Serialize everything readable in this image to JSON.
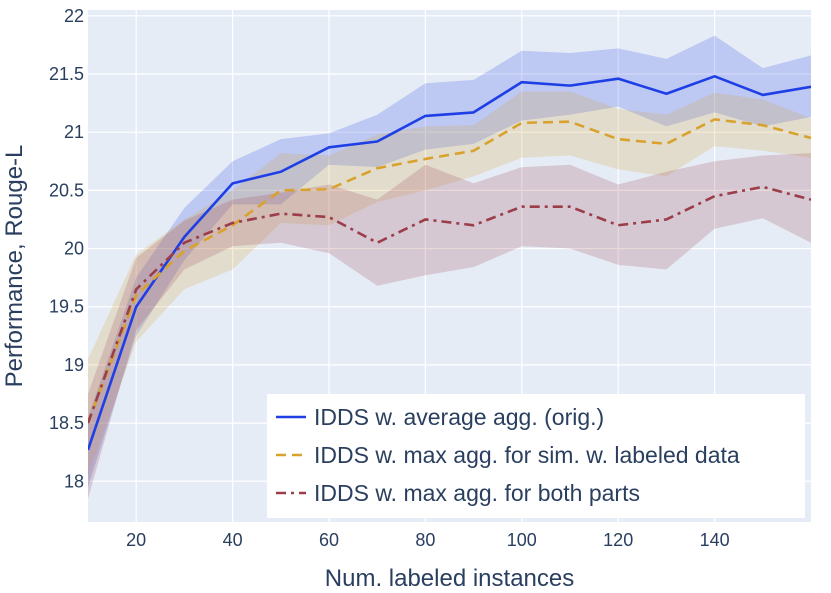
{
  "chart_data": {
    "type": "line",
    "title": "",
    "xlabel": "Num. labeled instances",
    "ylabel": "Performance, Rouge-L",
    "xlim": [
      10,
      160
    ],
    "ylim": [
      17.65,
      22.05
    ],
    "xticks": [
      20,
      40,
      60,
      80,
      100,
      120,
      140
    ],
    "xtick_labels": [
      "20",
      "40",
      "60",
      "80",
      "100",
      "120",
      "140"
    ],
    "yticks": [
      18,
      18.5,
      19,
      19.5,
      20,
      20.5,
      21,
      21.5,
      22
    ],
    "ytick_labels": [
      "18",
      "18.5",
      "19",
      "19.5",
      "20",
      "20.5",
      "21",
      "21.5",
      "22"
    ],
    "grid": true,
    "plot_background": "#e5ecf6",
    "legend_position": "bottom-right",
    "x": [
      10,
      20,
      30,
      40,
      50,
      60,
      70,
      80,
      90,
      100,
      110,
      120,
      130,
      140,
      150,
      160
    ],
    "series": [
      {
        "name": "IDDS w. average agg. (orig.)",
        "color": "#1f3fe6",
        "dash": "solid",
        "values": [
          18.27,
          19.5,
          20.1,
          20.56,
          20.66,
          20.87,
          20.92,
          21.14,
          21.17,
          21.43,
          21.4,
          21.46,
          21.33,
          21.48,
          21.32,
          21.39
        ],
        "lower": [
          17.95,
          19.25,
          19.9,
          20.38,
          20.38,
          20.72,
          20.7,
          20.85,
          20.9,
          21.1,
          21.15,
          21.22,
          21.05,
          21.17,
          21.05,
          21.13
        ],
        "upper": [
          18.55,
          19.75,
          20.35,
          20.75,
          20.94,
          20.99,
          21.15,
          21.42,
          21.45,
          21.7,
          21.68,
          21.72,
          21.63,
          21.83,
          21.55,
          21.66
        ]
      },
      {
        "name": "IDDS w. max agg. for sim. w. labeled data",
        "color": "#d9a22e",
        "dash": "dash",
        "values": [
          18.5,
          19.6,
          19.98,
          20.2,
          20.5,
          20.51,
          20.69,
          20.77,
          20.84,
          21.08,
          21.09,
          20.94,
          20.9,
          21.11,
          21.06,
          20.95
        ],
        "lower": [
          18.05,
          19.2,
          19.65,
          19.82,
          20.22,
          20.2,
          20.4,
          20.5,
          20.62,
          20.78,
          20.8,
          20.68,
          20.62,
          20.88,
          20.84,
          20.78
        ],
        "upper": [
          19.05,
          19.95,
          20.25,
          20.5,
          20.82,
          20.8,
          20.98,
          21.05,
          21.06,
          21.35,
          21.35,
          21.2,
          21.15,
          21.34,
          21.28,
          21.12
        ]
      },
      {
        "name": "IDDS w. max agg. for both parts",
        "color": "#9c3d4a",
        "dash": "dashdot",
        "values": [
          18.5,
          19.65,
          20.05,
          20.22,
          20.3,
          20.27,
          20.05,
          20.25,
          20.2,
          20.36,
          20.36,
          20.2,
          20.25,
          20.45,
          20.53,
          20.42
        ],
        "lower": [
          17.85,
          19.3,
          19.82,
          20.02,
          20.05,
          19.96,
          19.68,
          19.77,
          19.84,
          20.02,
          20.0,
          19.86,
          19.82,
          20.17,
          20.26,
          20.05
        ],
        "upper": [
          18.75,
          19.92,
          20.24,
          20.42,
          20.48,
          20.55,
          20.42,
          20.72,
          20.56,
          20.7,
          20.72,
          20.55,
          20.66,
          20.75,
          20.8,
          20.82
        ]
      }
    ]
  }
}
